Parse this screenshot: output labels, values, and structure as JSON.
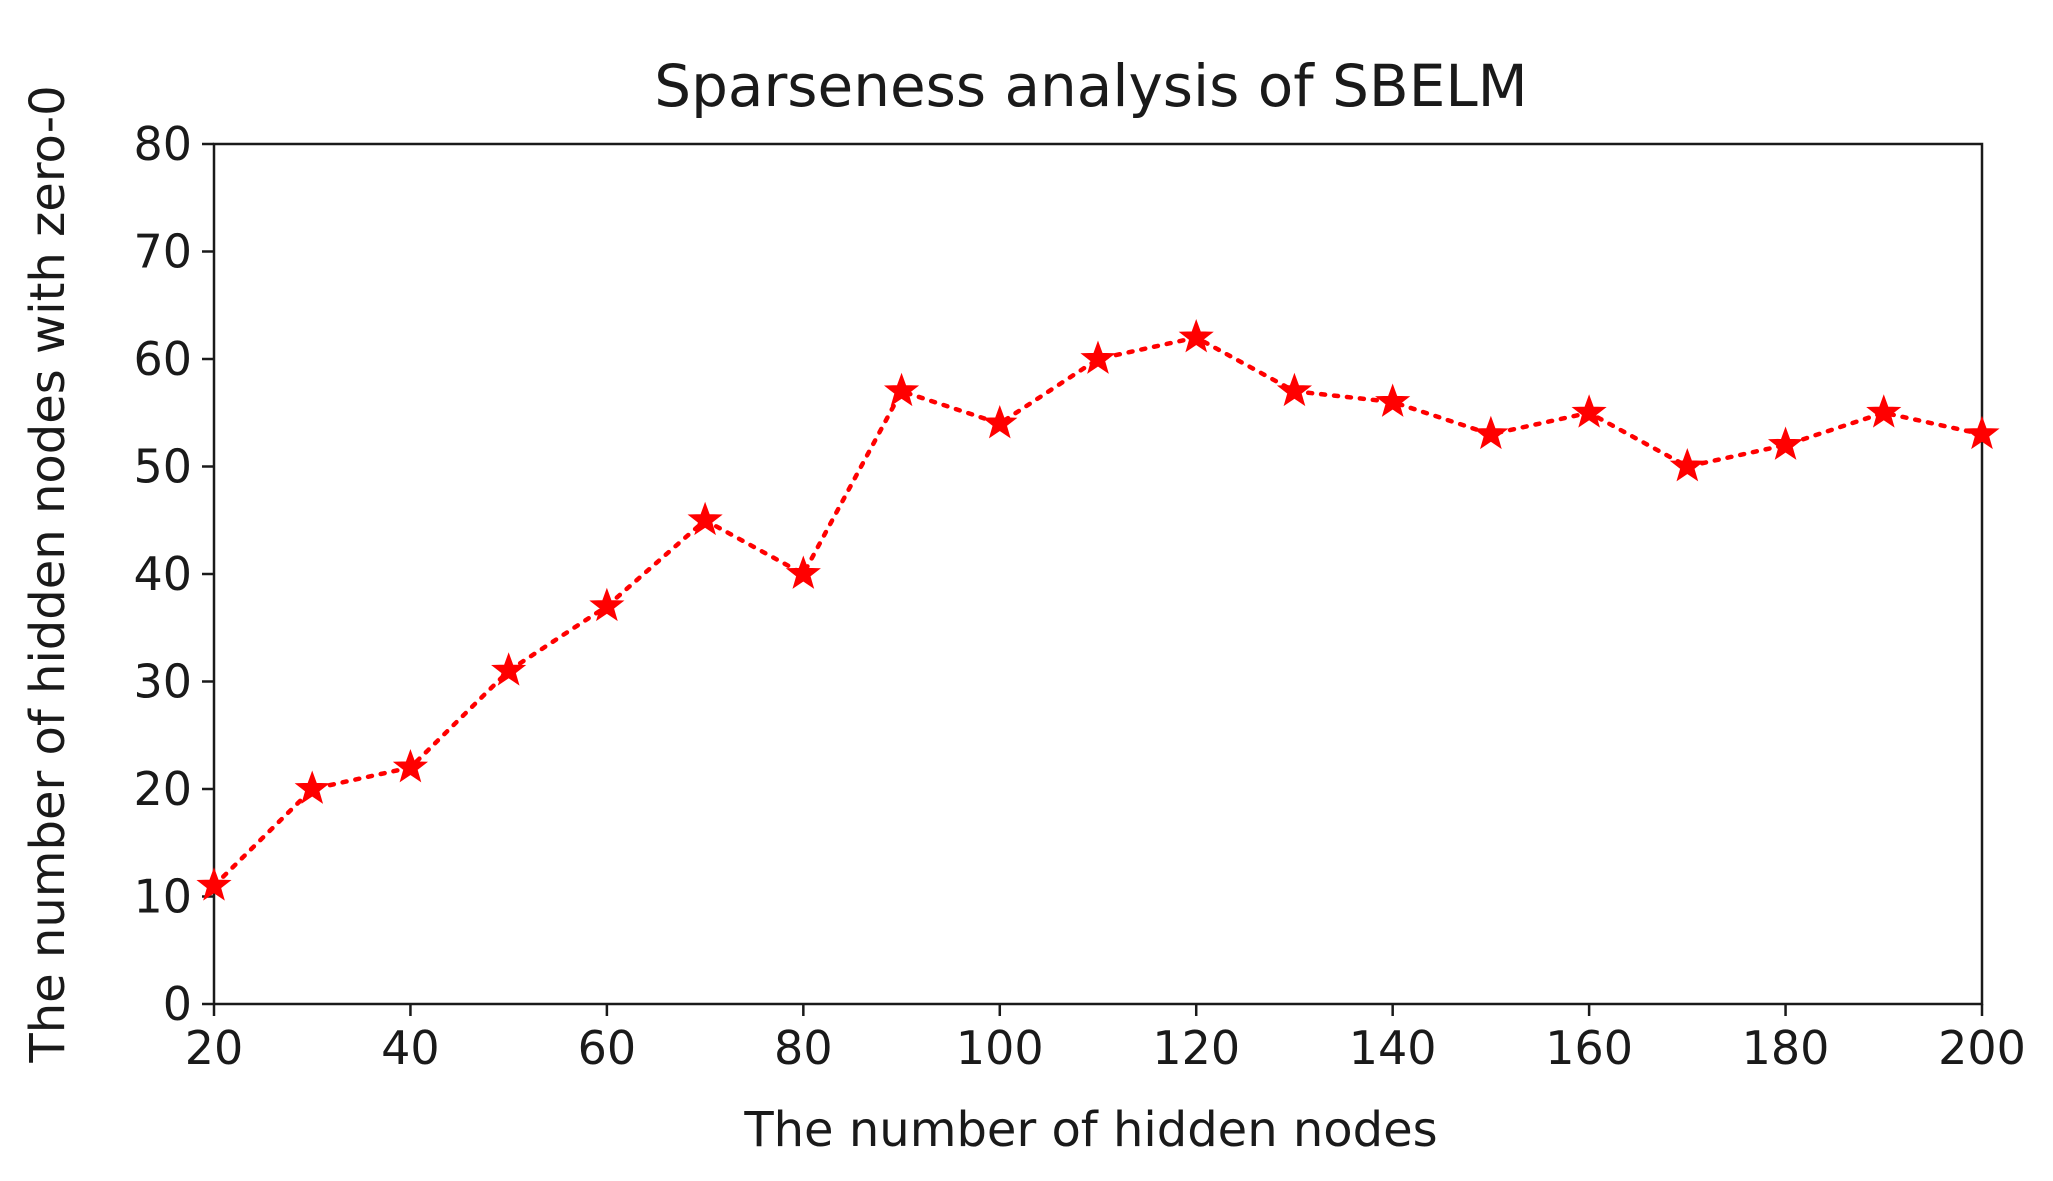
{
  "chart_data": {
    "type": "line",
    "title": "Sparseness analysis of SBELM",
    "xlabel": "The number of hidden nodes",
    "ylabel": "The number of hidden nodes with zero-0",
    "xlim": [
      20,
      200
    ],
    "ylim": [
      0,
      80
    ],
    "xticks": [
      20,
      40,
      60,
      80,
      100,
      120,
      140,
      160,
      180,
      200
    ],
    "yticks": [
      0,
      10,
      20,
      30,
      40,
      50,
      60,
      70,
      80
    ],
    "grid": false,
    "series": [
      {
        "color": "#ff0000",
        "line_style": "dotted",
        "marker": "star",
        "x": [
          20,
          30,
          40,
          50,
          60,
          70,
          80,
          90,
          100,
          110,
          120,
          130,
          140,
          150,
          160,
          170,
          180,
          190,
          200
        ],
        "y": [
          11,
          20,
          22,
          31,
          37,
          45,
          40,
          57,
          54,
          60,
          62,
          57,
          56,
          53,
          55,
          50,
          52,
          55,
          53
        ]
      }
    ]
  }
}
